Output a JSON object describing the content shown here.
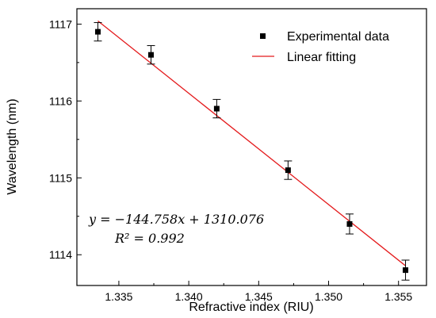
{
  "chart_data": {
    "type": "scatter",
    "xlabel": "Refractive index (RIU)",
    "ylabel": "Wavelength (nm)",
    "xlim": [
      1.332,
      1.357
    ],
    "ylim": [
      1113.6,
      1117.2
    ],
    "x_ticks": [
      "1.335",
      "1.340",
      "1.345",
      "1.350",
      "1.355"
    ],
    "y_ticks": [
      "1114",
      "1115",
      "1116",
      "1117"
    ],
    "grid": false,
    "legend_position": "top-right",
    "series": [
      {
        "name": "Experimental data",
        "kind": "points-with-error-bars",
        "color": "#000000",
        "x": [
          1.3335,
          1.3373,
          1.342,
          1.3471,
          1.3515,
          1.3555
        ],
        "y": [
          1116.9,
          1116.6,
          1115.9,
          1115.1,
          1114.4,
          1113.8
        ],
        "error": [
          0.12,
          0.12,
          0.12,
          0.12,
          0.13,
          0.13
        ]
      },
      {
        "name": "Linear fitting",
        "kind": "line",
        "color": "#e41a1c",
        "slope": -144.758,
        "intercept": 1310.076,
        "x_range": [
          1.3335,
          1.3555
        ]
      }
    ],
    "annotations": {
      "equation": "y = −144.758x + 1310.076",
      "r_squared": "R² = 0.992"
    }
  }
}
